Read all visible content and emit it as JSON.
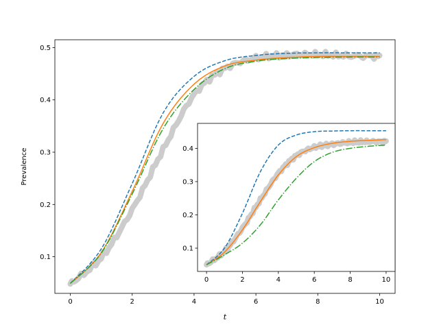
{
  "chart_data": [
    {
      "type": "line",
      "title": "",
      "xlabel": "t",
      "ylabel": "Prevalence",
      "xlim": [
        -0.5,
        10.5
      ],
      "ylim": [
        0.03,
        0.515
      ],
      "xticks": [
        0,
        2,
        4,
        6,
        8,
        10
      ],
      "yticks": [
        0.1,
        0.2,
        0.3,
        0.4,
        0.5
      ],
      "grid": false,
      "series": [
        {
          "style": "noisy-band",
          "color": "#cccccc",
          "x": [
            0,
            1,
            2,
            3,
            4,
            5,
            6,
            7,
            8,
            9,
            10
          ],
          "y": [
            0.048,
            0.098,
            0.19,
            0.305,
            0.41,
            0.46,
            0.48,
            0.486,
            0.487,
            0.484,
            0.483
          ]
        },
        {
          "style": "dashed",
          "color": "#1f77b4",
          "x": [
            0,
            1,
            2,
            3,
            4,
            5,
            6,
            7,
            8,
            9,
            10
          ],
          "y": [
            0.049,
            0.115,
            0.24,
            0.375,
            0.445,
            0.475,
            0.485,
            0.489,
            0.49,
            0.49,
            0.49
          ]
        },
        {
          "style": "solid",
          "color": "#ff7f0e",
          "x": [
            0,
            1,
            2,
            3,
            4,
            5,
            6,
            7,
            8,
            9,
            10
          ],
          "y": [
            0.049,
            0.108,
            0.225,
            0.355,
            0.43,
            0.465,
            0.476,
            0.481,
            0.483,
            0.483,
            0.483
          ]
        },
        {
          "style": "dashdot",
          "color": "#2ca02c",
          "x": [
            0,
            1,
            2,
            3,
            4,
            5,
            6,
            7,
            8,
            9,
            10
          ],
          "y": [
            0.049,
            0.107,
            0.22,
            0.345,
            0.42,
            0.46,
            0.474,
            0.479,
            0.481,
            0.482,
            0.482
          ]
        }
      ]
    },
    {
      "type": "line",
      "title": "",
      "xlabel": "",
      "ylabel": "",
      "xlim": [
        -0.5,
        10.5
      ],
      "ylim": [
        0.03,
        0.475
      ],
      "xticks": [
        0,
        2,
        4,
        6,
        8,
        10
      ],
      "yticks": [
        0.1,
        0.2,
        0.3,
        0.4
      ],
      "grid": false,
      "series": [
        {
          "style": "noisy-band",
          "color": "#cccccc",
          "x": [
            0,
            1,
            2,
            3,
            4,
            5,
            6,
            7,
            8,
            9,
            10
          ],
          "y": [
            0.05,
            0.09,
            0.16,
            0.245,
            0.325,
            0.378,
            0.403,
            0.412,
            0.418,
            0.42,
            0.42
          ]
        },
        {
          "style": "dashed",
          "color": "#1f77b4",
          "x": [
            0,
            1,
            2,
            3,
            4,
            5,
            6,
            7,
            8,
            9,
            10
          ],
          "y": [
            0.05,
            0.1,
            0.205,
            0.33,
            0.41,
            0.44,
            0.45,
            0.452,
            0.453,
            0.453,
            0.453
          ]
        },
        {
          "style": "solid",
          "color": "#ff7f0e",
          "x": [
            0,
            1,
            2,
            3,
            4,
            5,
            6,
            7,
            8,
            9,
            10
          ],
          "y": [
            0.05,
            0.088,
            0.155,
            0.24,
            0.32,
            0.375,
            0.402,
            0.415,
            0.421,
            0.424,
            0.426
          ]
        },
        {
          "style": "dashdot",
          "color": "#2ca02c",
          "x": [
            0,
            1,
            2,
            3,
            4,
            5,
            6,
            7,
            8,
            9,
            10
          ],
          "y": [
            0.05,
            0.08,
            0.115,
            0.17,
            0.245,
            0.31,
            0.36,
            0.388,
            0.4,
            0.406,
            0.41
          ]
        }
      ]
    }
  ]
}
